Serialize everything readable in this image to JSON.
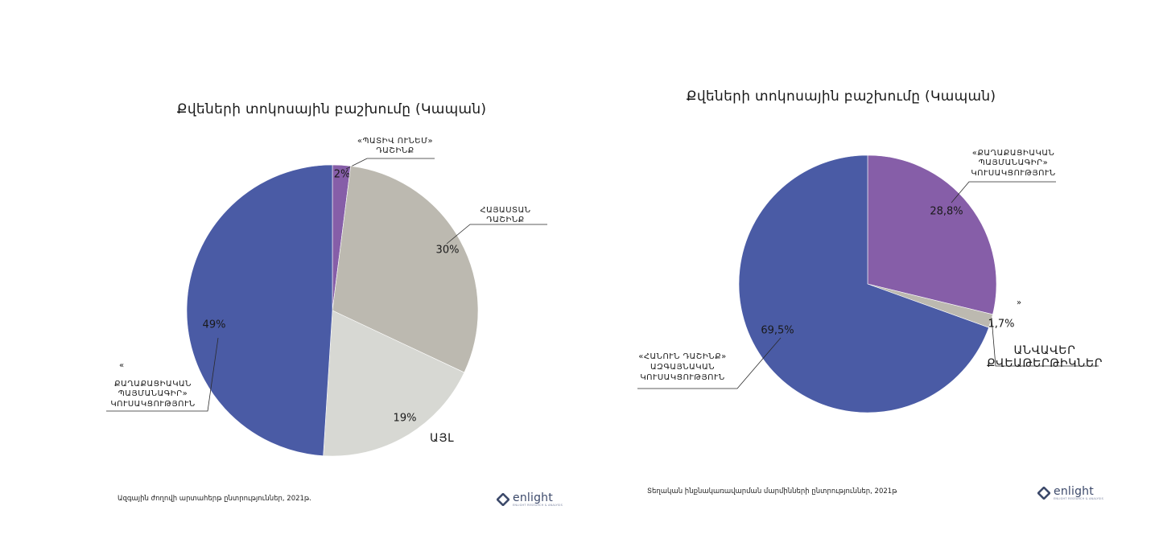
{
  "colors": {
    "blue": "#4a5ba5",
    "purple": "#865ea8",
    "beige": "#bcb9b0",
    "light_gray": "#d7d8d3"
  },
  "chart_data": [
    {
      "type": "pie",
      "title": "Քվեների տոկոսային բաշխումը (Կապան)",
      "slices": [
        {
          "label_lines": [
            "«ՊԱՏԻՎ ՈՒՆԵՄ»",
            "ԴԱՇԻՆՔ"
          ],
          "value": 2,
          "value_label": "2%",
          "color": "#865ea8"
        },
        {
          "label_lines": [
            "ՀԱՅԱՍՏԱՆ",
            "ԴԱՇԻՆՔ"
          ],
          "value": 30,
          "value_label": "30%",
          "color": "#bcb9b0"
        },
        {
          "label_lines": [
            "ԱՅԼ"
          ],
          "value": 19,
          "value_label": "19%",
          "color": "#d7d8d3"
        },
        {
          "label_lines": [
            "«",
            "ՔԱՂԱՔԱՑԻԱԿԱՆ",
            "ՊԱՅՄԱՆԱԳԻՐ»",
            "ԿՈՒՍԱԿՑՈՒԹՅՈՒՆ"
          ],
          "value": 49,
          "value_label": "49%",
          "color": "#4a5ba5"
        }
      ],
      "source": "Ազգային ժողովի արտահերթ ընտրություններ, 2021թ."
    },
    {
      "type": "pie",
      "title": "Քվեների տոկոսային բաշխումը (Կապան)",
      "slices": [
        {
          "label_lines": [
            "«ՔԱՂԱՔԱՑԻԱԿԱՆ",
            "ՊԱՅՄԱՆԱԳԻՐ»",
            "ԿՈՒՍԱԿՑՈՒԹՅՈՒՆ"
          ],
          "value": 28.8,
          "value_label": "28,8%",
          "color": "#865ea8"
        },
        {
          "label_lines": [
            "»",
            "ԱՆՎԱՎԵՐ",
            "ՔՎԵԱԹԵՐԹԻԿՆԵՐ"
          ],
          "value": 1.7,
          "value_label": "1,7%",
          "color": "#bcb9b0"
        },
        {
          "label_lines": [
            "«ՀԱՆՈՒՆ ԴԱՇԻՆՔ»",
            "ԱԶԳԱՅՆԱԿԱՆ",
            "ԿՈՒՍԱԿՑՈՒԹՅՈՒՆ"
          ],
          "value": 69.5,
          "value_label": "69,5%",
          "color": "#4a5ba5"
        }
      ],
      "source": "Տեղական ինքնակառավարման մարմինների ընտրություններ, 2021թ"
    }
  ],
  "logo": {
    "word": "enlight",
    "sub": "ENLIGHT RESEARCH & ANALYSIS"
  }
}
